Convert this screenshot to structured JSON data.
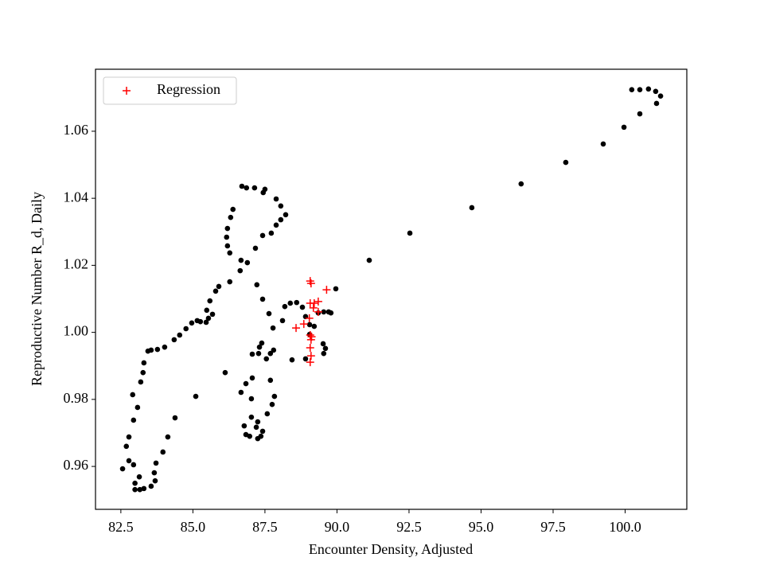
{
  "chart_data": {
    "type": "scatter",
    "xlabel": "Encounter Density, Adjusted",
    "ylabel": "Reproductive Number R_d, Daily",
    "xlim": [
      81.62,
      102.14
    ],
    "ylim": [
      0.9472,
      1.0785
    ],
    "xticks": [
      82.5,
      {
        "value": 85.0,
        "label": "85.0"
      },
      87.5,
      {
        "value": 90.0,
        "label": "90.0"
      },
      92.5,
      {
        "value": 95.0,
        "label": "95.0"
      },
      97.5,
      {
        "value": 100.0,
        "label": "100.0"
      }
    ],
    "yticks": [
      0.96,
      0.98,
      {
        "value": 1.0,
        "label": "1.00"
      },
      1.02,
      1.04,
      1.06
    ],
    "legend": "upper left",
    "series": [
      {
        "color": "#000000",
        "marker": "dot",
        "x": [
          100.23,
          100.51,
          100.81,
          101.06,
          101.23,
          101.09,
          100.51,
          99.96,
          99.24,
          97.94,
          96.39,
          94.68,
          92.53,
          91.12,
          89.96,
          82.56,
          82.69,
          82.78,
          82.94,
          83.08,
          82.91,
          83.19,
          83.27,
          83.3,
          83.44,
          83.55,
          83.77,
          84.02,
          84.35,
          84.54,
          84.76,
          84.96,
          85.15,
          85.26,
          85.46,
          85.54,
          85.68,
          85.48,
          85.59,
          85.79,
          85.9,
          86.28,
          86.64,
          86.89,
          87.17,
          87.42,
          87.72,
          87.89,
          88.05,
          88.22,
          88.05,
          87.89,
          87.5,
          87.44,
          87.14,
          86.7,
          86.86,
          86.39,
          86.31,
          86.2,
          86.17,
          86.2,
          86.28,
          86.67,
          87.22,
          87.42,
          87.64,
          87.78,
          88.11,
          88.19,
          88.38,
          88.6,
          88.8,
          88.91,
          89.05,
          89.05,
          89.21,
          89.35,
          89.54,
          89.71,
          89.79,
          82.78,
          82.94,
          82.99,
          83.16,
          83.3,
          83.14,
          82.99,
          83.55,
          83.69,
          83.66,
          83.72,
          83.96,
          84.13,
          84.38,
          85.1,
          86.12,
          87.55,
          87.69,
          87.8,
          87.69,
          87.83,
          87.75,
          87.58,
          87.25,
          87.03,
          86.78,
          86.84,
          86.97,
          87.25,
          87.36,
          87.42,
          87.2,
          87.03,
          87.06,
          87.31,
          87.39,
          87.06,
          87.28,
          88.44,
          88.91,
          89.54,
          89.6,
          89.52,
          86.67,
          86.84
        ],
        "values": [
          1.0724,
          1.0724,
          1.0726,
          1.0719,
          1.0705,
          1.0683,
          1.0652,
          1.0612,
          1.0562,
          1.0507,
          1.0443,
          1.0372,
          1.0296,
          1.0215,
          1.013,
          0.9593,
          0.966,
          0.9688,
          0.9738,
          0.9776,
          0.9814,
          0.9852,
          0.988,
          0.9909,
          0.9944,
          0.9947,
          0.9949,
          0.9956,
          0.9978,
          0.9992,
          1.0011,
          1.0028,
          1.0035,
          1.0032,
          1.003,
          1.0042,
          1.0054,
          1.0066,
          1.0094,
          1.0123,
          1.0137,
          1.0151,
          1.0184,
          1.0208,
          1.0251,
          1.0289,
          1.0296,
          1.032,
          1.0336,
          1.0351,
          1.0377,
          1.0398,
          1.0427,
          1.0417,
          1.0431,
          1.0436,
          1.0431,
          1.0367,
          1.0343,
          1.031,
          1.0284,
          1.0258,
          1.0237,
          1.0215,
          1.0142,
          1.0099,
          1.0056,
          1.0013,
          1.0035,
          1.0077,
          1.0087,
          1.0089,
          1.0075,
          1.0047,
          1.0023,
          0.9994,
          1.0018,
          1.0058,
          1.0061,
          1.0061,
          1.0058,
          0.9617,
          0.9605,
          0.9531,
          0.9531,
          0.9534,
          0.9569,
          0.955,
          0.9541,
          0.9557,
          0.9581,
          0.961,
          0.9643,
          0.9688,
          0.9745,
          0.9809,
          0.988,
          0.9921,
          0.9937,
          0.9947,
          0.9857,
          0.9809,
          0.9785,
          0.9757,
          0.9733,
          0.9747,
          0.9721,
          0.9695,
          0.969,
          0.9683,
          0.969,
          0.9705,
          0.9717,
          0.9802,
          0.9864,
          0.9956,
          0.9968,
          0.9935,
          0.9937,
          0.9918,
          0.9921,
          0.9937,
          0.9952,
          0.9966,
          0.9821,
          0.9847
        ]
      },
      {
        "name": "Regression",
        "color": "#ff0000",
        "marker": "plus",
        "x": [
          89.07,
          89.1,
          89.64,
          89.07,
          89.21,
          89.35,
          89.18,
          89.04,
          89.35,
          88.58,
          88.85,
          89.07,
          89.12,
          89.1,
          89.07,
          89.1,
          89.07
        ],
        "values": [
          1.0153,
          1.0146,
          1.0127,
          1.0087,
          1.0087,
          1.0092,
          1.0073,
          1.0042,
          1.0061,
          1.0013,
          1.0025,
          0.9992,
          0.9987,
          0.9978,
          0.9954,
          0.993,
          0.9911
        ]
      }
    ]
  }
}
